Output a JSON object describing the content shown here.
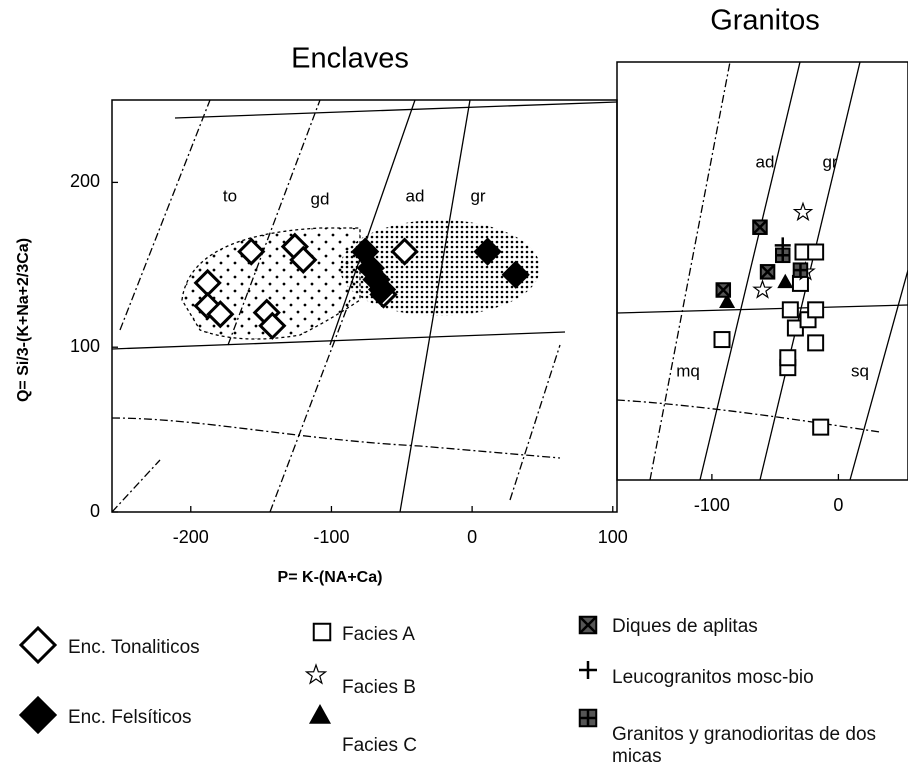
{
  "chart_data": [
    {
      "type": "scatter",
      "title": "Enclaves",
      "x_label": "P= K-(NA+Ca)",
      "y_label": "Q= Si/3-(K+Na+2/3Ca)",
      "annotations": [
        "to",
        "gd",
        "ad",
        "gr"
      ],
      "xlim": [
        -256,
        103
      ],
      "ylim": [
        0,
        250
      ],
      "xticks": [
        -200,
        -100,
        0,
        100
      ],
      "yticks": [
        0,
        100,
        200
      ],
      "color": "#000000",
      "grid": false,
      "series": [
        {
          "name": "Enc. Tonaliticos",
          "marker": "diamond-open",
          "x": [
            -188,
            -188,
            -179,
            -157,
            -126,
            -120,
            -146,
            -142,
            -48,
            -63
          ],
          "values": [
            139,
            125,
            120,
            158,
            161,
            153,
            121,
            113,
            158,
            132
          ]
        },
        {
          "name": "Enc. Felsíticos",
          "marker": "diamond",
          "x": [
            -76,
            -72,
            -68,
            -64,
            11,
            31
          ],
          "values": [
            158,
            148,
            141,
            135,
            158,
            144
          ]
        }
      ]
    },
    {
      "type": "scatter",
      "title": "Granitos",
      "annotations": [
        "ad",
        "gr",
        "mq",
        "sq"
      ],
      "xlim": [
        -175,
        55
      ],
      "ylim": [
        0,
        253
      ],
      "xticks": [
        -100,
        0
      ],
      "color": "#000000",
      "grid": false,
      "series": [
        {
          "name": "Facies A",
          "marker": "square-open",
          "x": [
            -92,
            -40,
            -40,
            -38,
            -34,
            -24,
            -18,
            -18,
            -14,
            -28,
            -18,
            -30
          ],
          "values": [
            85,
            68,
            74,
            103,
            92,
            97,
            103,
            83,
            32,
            138,
            138,
            119
          ]
        },
        {
          "name": "Facies B",
          "marker": "star-open",
          "x": [
            -28,
            -60,
            -26
          ],
          "values": [
            162,
            115,
            126
          ]
        },
        {
          "name": "Facies C",
          "marker": "triangle",
          "x": [
            -88,
            -42
          ],
          "values": [
            108,
            120
          ]
        },
        {
          "name": "Diques de aplitas",
          "marker": "square-x",
          "x": [
            -62,
            -91,
            -56
          ],
          "values": [
            153,
            115,
            126
          ]
        },
        {
          "name": "Leucogranitos mosc-bio",
          "marker": "plus",
          "x": [
            -44
          ],
          "values": [
            142
          ]
        },
        {
          "name": "Granitos y granodioritas de dos micas",
          "marker": "square-plus",
          "x": [
            -44,
            -30
          ],
          "values": [
            136,
            127
          ]
        }
      ]
    }
  ]
}
